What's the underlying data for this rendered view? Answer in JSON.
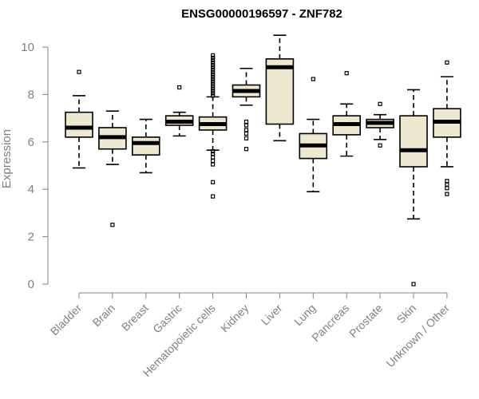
{
  "chart_data": {
    "type": "box",
    "title": "ENSG00000196597 - ZNF782",
    "xlabel": "",
    "ylabel": "Expression",
    "ylim": [
      0,
      10
    ],
    "yticks": [
      0,
      2,
      4,
      6,
      8,
      10
    ],
    "grid": false,
    "colors": {
      "box_fill": "#efe8d0",
      "stroke": "#000000",
      "axis": "#808080"
    },
    "categories": [
      "Bladder",
      "Brain",
      "Breast",
      "Gastric",
      "Hematopoietic cells",
      "Kidney",
      "Liver",
      "Lung",
      "Pancreas",
      "Prostate",
      "Skin",
      "Unknown / Other"
    ],
    "boxes": [
      {
        "category": "Bladder",
        "whisker_low": 4.9,
        "q1": 6.2,
        "median": 6.6,
        "q3": 7.25,
        "whisker_high": 7.95,
        "outliers": [
          8.95
        ]
      },
      {
        "category": "Brain",
        "whisker_low": 5.05,
        "q1": 5.7,
        "median": 6.2,
        "q3": 6.6,
        "whisker_high": 7.3,
        "outliers": [
          2.5
        ]
      },
      {
        "category": "Breast",
        "whisker_low": 4.7,
        "q1": 5.45,
        "median": 5.95,
        "q3": 6.2,
        "whisker_high": 6.95,
        "outliers": []
      },
      {
        "category": "Gastric",
        "whisker_low": 6.25,
        "q1": 6.7,
        "median": 6.85,
        "q3": 7.1,
        "whisker_high": 7.25,
        "outliers": [
          8.3
        ]
      },
      {
        "category": "Hematopoietic cells",
        "whisker_low": 5.65,
        "q1": 6.5,
        "median": 6.75,
        "q3": 7.05,
        "whisker_high": 7.9,
        "outliers": [
          3.7,
          4.3,
          5.05,
          5.2,
          5.35,
          5.5,
          5.6,
          7.95,
          8.05,
          8.15,
          8.25,
          8.35,
          8.45,
          8.55,
          8.65,
          8.75,
          8.85,
          8.95,
          9.05,
          9.15,
          9.25,
          9.35,
          9.45,
          9.55,
          9.65
        ]
      },
      {
        "category": "Kidney",
        "whisker_low": 7.55,
        "q1": 7.9,
        "median": 8.15,
        "q3": 8.4,
        "whisker_high": 9.1,
        "outliers": [
          5.7,
          6.15,
          6.35,
          6.5,
          6.7,
          6.85
        ]
      },
      {
        "category": "Liver",
        "whisker_low": 6.05,
        "q1": 6.75,
        "median": 9.15,
        "q3": 9.5,
        "whisker_high": 10.5,
        "outliers": []
      },
      {
        "category": "Lung",
        "whisker_low": 3.9,
        "q1": 5.3,
        "median": 5.85,
        "q3": 6.35,
        "whisker_high": 6.95,
        "outliers": [
          8.65
        ]
      },
      {
        "category": "Pancreas",
        "whisker_low": 5.4,
        "q1": 6.3,
        "median": 6.75,
        "q3": 7.1,
        "whisker_high": 7.6,
        "outliers": [
          8.9
        ]
      },
      {
        "category": "Prostate",
        "whisker_low": 6.1,
        "q1": 6.6,
        "median": 6.8,
        "q3": 6.95,
        "whisker_high": 7.15,
        "outliers": [
          5.85,
          7.6
        ]
      },
      {
        "category": "Skin",
        "whisker_low": 2.75,
        "q1": 4.95,
        "median": 5.65,
        "q3": 7.1,
        "whisker_high": 8.2,
        "outliers": [
          0.0
        ]
      },
      {
        "category": "Unknown / Other",
        "whisker_low": 4.95,
        "q1": 6.2,
        "median": 6.85,
        "q3": 7.4,
        "whisker_high": 8.75,
        "outliers": [
          3.8,
          4.05,
          4.2,
          4.35,
          9.35
        ]
      }
    ]
  }
}
